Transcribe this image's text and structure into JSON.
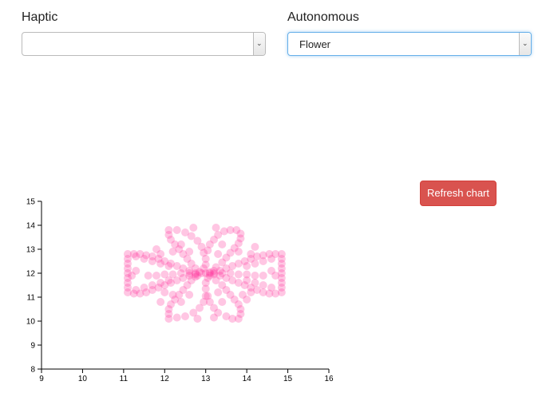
{
  "controls": {
    "haptic": {
      "label": "Haptic",
      "value": ""
    },
    "autonomous": {
      "label": "Autonomous",
      "value": "Flower"
    },
    "refresh_label": "Refresh chart"
  },
  "icons": {
    "select_arrow": "chevron-down-icon"
  },
  "colors": {
    "point": "#ff3399",
    "button": "#d9534f"
  },
  "chart_data": {
    "type": "scatter",
    "title": "",
    "xlabel": "",
    "ylabel": "",
    "xlim": [
      9,
      16
    ],
    "ylim": [
      8,
      15
    ],
    "xticks": [
      "9",
      "10",
      "11",
      "12",
      "13",
      "14",
      "15",
      "16"
    ],
    "yticks": [
      "8",
      "9",
      "10",
      "11",
      "12",
      "13",
      "14",
      "15"
    ],
    "grid": false,
    "point_color": "#ff3399",
    "point_opacity": 0.28,
    "series": [
      {
        "points": [
          [
            11.1,
            12.8
          ],
          [
            11.25,
            12.8
          ],
          [
            11.4,
            12.8
          ],
          [
            11.55,
            12.75
          ],
          [
            11.7,
            12.7
          ],
          [
            11.85,
            12.6
          ],
          [
            12.0,
            12.5
          ],
          [
            12.15,
            12.4
          ],
          [
            12.3,
            12.3
          ],
          [
            12.45,
            12.2
          ],
          [
            12.6,
            12.1
          ],
          [
            12.75,
            12.0
          ],
          [
            11.1,
            11.2
          ],
          [
            11.25,
            11.15
          ],
          [
            11.4,
            11.15
          ],
          [
            11.55,
            11.2
          ],
          [
            11.7,
            11.3
          ],
          [
            11.85,
            11.4
          ],
          [
            12.0,
            11.5
          ],
          [
            12.15,
            11.6
          ],
          [
            12.3,
            11.7
          ],
          [
            12.45,
            11.8
          ],
          [
            12.6,
            11.9
          ],
          [
            12.75,
            11.95
          ],
          [
            11.1,
            12.6
          ],
          [
            11.1,
            12.4
          ],
          [
            11.1,
            12.2
          ],
          [
            11.1,
            12.0
          ],
          [
            11.1,
            11.8
          ],
          [
            11.1,
            11.6
          ],
          [
            11.1,
            11.4
          ],
          [
            11.3,
            12.7
          ],
          [
            11.3,
            11.3
          ],
          [
            11.5,
            12.6
          ],
          [
            11.5,
            11.4
          ],
          [
            11.7,
            12.5
          ],
          [
            11.7,
            11.5
          ],
          [
            11.9,
            12.4
          ],
          [
            11.9,
            11.6
          ],
          [
            12.1,
            12.3
          ],
          [
            12.1,
            11.7
          ],
          [
            14.85,
            12.8
          ],
          [
            14.7,
            12.8
          ],
          [
            14.55,
            12.8
          ],
          [
            14.4,
            12.75
          ],
          [
            14.25,
            12.7
          ],
          [
            14.1,
            12.6
          ],
          [
            13.95,
            12.5
          ],
          [
            13.8,
            12.4
          ],
          [
            13.65,
            12.3
          ],
          [
            13.5,
            12.2
          ],
          [
            13.35,
            12.1
          ],
          [
            13.2,
            12.0
          ],
          [
            14.85,
            11.2
          ],
          [
            14.7,
            11.15
          ],
          [
            14.55,
            11.15
          ],
          [
            14.4,
            11.2
          ],
          [
            14.25,
            11.3
          ],
          [
            14.1,
            11.4
          ],
          [
            13.95,
            11.5
          ],
          [
            13.8,
            11.6
          ],
          [
            13.65,
            11.7
          ],
          [
            13.5,
            11.8
          ],
          [
            13.35,
            11.9
          ],
          [
            13.2,
            11.95
          ],
          [
            14.85,
            12.6
          ],
          [
            14.85,
            12.4
          ],
          [
            14.85,
            12.2
          ],
          [
            14.85,
            12.0
          ],
          [
            14.85,
            11.8
          ],
          [
            14.85,
            11.6
          ],
          [
            14.85,
            11.4
          ],
          [
            14.6,
            12.6
          ],
          [
            14.6,
            11.4
          ],
          [
            14.4,
            12.5
          ],
          [
            14.4,
            11.5
          ],
          [
            14.2,
            12.4
          ],
          [
            14.2,
            11.6
          ],
          [
            14.0,
            12.3
          ],
          [
            14.0,
            11.7
          ],
          [
            12.1,
            13.8
          ],
          [
            12.1,
            13.6
          ],
          [
            12.15,
            13.4
          ],
          [
            12.25,
            13.2
          ],
          [
            12.35,
            13.0
          ],
          [
            12.45,
            12.8
          ],
          [
            12.55,
            12.6
          ],
          [
            12.65,
            12.4
          ],
          [
            12.75,
            12.2
          ],
          [
            12.85,
            12.05
          ],
          [
            12.3,
            13.8
          ],
          [
            12.5,
            13.7
          ],
          [
            12.65,
            13.55
          ],
          [
            12.8,
            13.35
          ],
          [
            12.9,
            13.1
          ],
          [
            12.95,
            12.85
          ],
          [
            13.0,
            12.6
          ],
          [
            13.0,
            12.35
          ],
          [
            13.6,
            13.8
          ],
          [
            13.75,
            13.8
          ],
          [
            13.85,
            13.65
          ],
          [
            13.85,
            13.45
          ],
          [
            13.8,
            13.25
          ],
          [
            13.7,
            13.05
          ],
          [
            13.6,
            12.85
          ],
          [
            13.5,
            12.65
          ],
          [
            13.4,
            12.45
          ],
          [
            13.25,
            12.25
          ],
          [
            13.1,
            12.05
          ],
          [
            13.45,
            13.75
          ],
          [
            13.3,
            13.6
          ],
          [
            13.2,
            13.4
          ],
          [
            13.1,
            13.2
          ],
          [
            13.05,
            12.95
          ],
          [
            12.1,
            10.1
          ],
          [
            12.1,
            10.3
          ],
          [
            12.1,
            10.5
          ],
          [
            12.15,
            10.7
          ],
          [
            12.25,
            10.9
          ],
          [
            12.35,
            11.1
          ],
          [
            12.45,
            11.3
          ],
          [
            12.55,
            11.5
          ],
          [
            12.65,
            11.7
          ],
          [
            12.75,
            11.85
          ],
          [
            12.3,
            10.15
          ],
          [
            12.5,
            10.2
          ],
          [
            12.7,
            10.35
          ],
          [
            12.85,
            10.55
          ],
          [
            12.95,
            10.8
          ],
          [
            13.0,
            11.05
          ],
          [
            13.0,
            11.35
          ],
          [
            13.0,
            11.6
          ],
          [
            13.65,
            10.1
          ],
          [
            13.8,
            10.1
          ],
          [
            13.85,
            10.3
          ],
          [
            13.85,
            10.5
          ],
          [
            13.8,
            10.7
          ],
          [
            13.7,
            10.9
          ],
          [
            13.6,
            11.1
          ],
          [
            13.5,
            11.3
          ],
          [
            13.4,
            11.5
          ],
          [
            13.25,
            11.7
          ],
          [
            13.1,
            11.9
          ],
          [
            13.5,
            10.2
          ],
          [
            13.3,
            10.35
          ],
          [
            13.2,
            10.55
          ],
          [
            13.1,
            10.8
          ],
          [
            13.05,
            11.05
          ],
          [
            12.9,
            12.0
          ],
          [
            13.0,
            12.0
          ],
          [
            13.1,
            12.0
          ],
          [
            12.95,
            12.2
          ],
          [
            13.05,
            11.8
          ],
          [
            12.8,
            11.9
          ],
          [
            13.2,
            12.1
          ],
          [
            11.6,
            11.9
          ],
          [
            11.8,
            11.9
          ],
          [
            12.0,
            11.95
          ],
          [
            12.2,
            11.95
          ],
          [
            12.4,
            12.0
          ],
          [
            12.6,
            12.0
          ],
          [
            13.4,
            12.0
          ],
          [
            13.6,
            12.0
          ],
          [
            13.8,
            11.95
          ],
          [
            14.0,
            11.95
          ],
          [
            14.2,
            11.9
          ],
          [
            14.4,
            11.9
          ],
          [
            11.2,
            11.9
          ],
          [
            11.3,
            12.1
          ],
          [
            14.6,
            12.1
          ],
          [
            14.7,
            11.9
          ],
          [
            12.0,
            11.2
          ],
          [
            12.2,
            11.1
          ],
          [
            11.9,
            12.8
          ],
          [
            12.2,
            12.9
          ],
          [
            13.8,
            12.9
          ],
          [
            14.1,
            12.8
          ],
          [
            13.9,
            11.1
          ],
          [
            14.1,
            11.2
          ],
          [
            12.4,
            13.2
          ],
          [
            12.6,
            12.9
          ],
          [
            13.4,
            13.2
          ],
          [
            13.3,
            12.8
          ],
          [
            12.4,
            10.8
          ],
          [
            12.6,
            11.1
          ],
          [
            13.4,
            10.8
          ],
          [
            13.3,
            11.2
          ],
          [
            11.9,
            10.8
          ],
          [
            12.7,
            13.9
          ],
          [
            13.25,
            13.9
          ],
          [
            14.2,
            13.1
          ],
          [
            11.8,
            13.0
          ],
          [
            14.0,
            10.9
          ],
          [
            12.8,
            10.1
          ],
          [
            13.2,
            10.15
          ]
        ]
      }
    ]
  }
}
